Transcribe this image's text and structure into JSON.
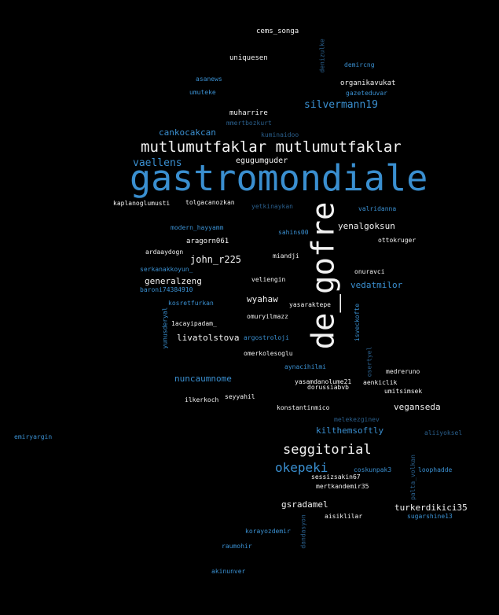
{
  "colors": {
    "background": "#000000",
    "white": "#f2f2f2",
    "blue": "#3a8fd0",
    "dim": "#2a5f8c"
  },
  "words": [
    {
      "id": "w-cems_songa",
      "text": "cems_songa"
    },
    {
      "id": "w-denizulke",
      "text": "denizulke"
    },
    {
      "id": "w-uniquesen",
      "text": "uniquesen"
    },
    {
      "id": "w-demircng",
      "text": "demircng"
    },
    {
      "id": "w-asanews",
      "text": "asanews"
    },
    {
      "id": "w-organikavukat",
      "text": "organikavukat"
    },
    {
      "id": "w-umuteke",
      "text": "umuteke"
    },
    {
      "id": "w-gazeteduvar",
      "text": "gazeteduvar"
    },
    {
      "id": "w-silvermann19",
      "text": "silvermann19"
    },
    {
      "id": "w-muharrire",
      "text": "muharrire"
    },
    {
      "id": "w-mmertbozkurt",
      "text": "mmertbozkurt"
    },
    {
      "id": "w-cankocakcan",
      "text": "cankocakcan"
    },
    {
      "id": "w-kuminaidoo",
      "text": "kuminaidoo"
    },
    {
      "id": "w-mutlumutfaklar",
      "text": "mutlumutfaklar mutlumutfaklar"
    },
    {
      "id": "w-vaellens",
      "text": "vaellens"
    },
    {
      "id": "w-egugumguder",
      "text": "egugumguder"
    },
    {
      "id": "w-gastromondiale",
      "text": "gastromondiale"
    },
    {
      "id": "w-kaplanoglumusti",
      "text": "kaplanoglumusti"
    },
    {
      "id": "w-tolgacanozkan",
      "text": "tolgacanozkan"
    },
    {
      "id": "w-yetkinaykan",
      "text": "yetkinaykan"
    },
    {
      "id": "w-de_gofre",
      "text": "de_gofre"
    },
    {
      "id": "w-valridanna",
      "text": "valridanna"
    },
    {
      "id": "w-modern_hayyamm",
      "text": "modern_hayyamm"
    },
    {
      "id": "w-yenalgoksun",
      "text": "yenalgoksun"
    },
    {
      "id": "w-sahins00",
      "text": "sahins00"
    },
    {
      "id": "w-aragorn061",
      "text": "aragorn061"
    },
    {
      "id": "w-ottokruger",
      "text": "ottokruger"
    },
    {
      "id": "w-ardaaydogn",
      "text": "ardaaydogn"
    },
    {
      "id": "w-miandji",
      "text": "miandji"
    },
    {
      "id": "w-john_r225",
      "text": "john_r225"
    },
    {
      "id": "w-serkanakkoyun_",
      "text": "serkanakkoyun_"
    },
    {
      "id": "w-onuravci",
      "text": "onuravci"
    },
    {
      "id": "w-generalzeng",
      "text": "generalzeng"
    },
    {
      "id": "w-veliengin",
      "text": "veliengin"
    },
    {
      "id": "w-vedatmilor",
      "text": "vedatmilor"
    },
    {
      "id": "w-baroni74384910",
      "text": "baroni74384910"
    },
    {
      "id": "w-wyahaw",
      "text": "wyahaw"
    },
    {
      "id": "w-kosretfurkan",
      "text": "kosretfurkan"
    },
    {
      "id": "w-yasaraktepe",
      "text": "yasaraktepe"
    },
    {
      "id": "w-yunusderyal",
      "text": "yunusderyal"
    },
    {
      "id": "w-omuryilmazz",
      "text": "omuryilmazz"
    },
    {
      "id": "w-isveckofte",
      "text": "isveckofte"
    },
    {
      "id": "w-1acayipadam_",
      "text": "1acayipadam_"
    },
    {
      "id": "w-livatolstova",
      "text": "livatolstova"
    },
    {
      "id": "w-argostroloji",
      "text": "argostroloji"
    },
    {
      "id": "w-omerkolesoglu",
      "text": "omerkolesoglu"
    },
    {
      "id": "w-osertyel",
      "text": "osertyel"
    },
    {
      "id": "w-aynacihilmi",
      "text": "aynacihilmi"
    },
    {
      "id": "w-medreruno",
      "text": "medreruno"
    },
    {
      "id": "w-nuncaumnome",
      "text": "nuncaumnome"
    },
    {
      "id": "w-yasamdanolume21",
      "text": "yasamdanolume21"
    },
    {
      "id": "w-aenkiclik",
      "text": "aenkiclik"
    },
    {
      "id": "w-dorussiabvb",
      "text": "dorussiabvb"
    },
    {
      "id": "w-umitsimsek",
      "text": "umitsimsek"
    },
    {
      "id": "w-seyyahil",
      "text": "seyyahil"
    },
    {
      "id": "w-ilkerkoch",
      "text": "ilkerkoch"
    },
    {
      "id": "w-konstantinmico",
      "text": "konstantinmico"
    },
    {
      "id": "w-veganseda",
      "text": "veganseda"
    },
    {
      "id": "w-melekezginev",
      "text": "melekezginev"
    },
    {
      "id": "w-kilthemsoftly",
      "text": "kilthemsoftly"
    },
    {
      "id": "w-aliiyoksel",
      "text": "aliiyoksel"
    },
    {
      "id": "w-emiryargin",
      "text": "emiryargin"
    },
    {
      "id": "w-seggitorial",
      "text": "seggitorial"
    },
    {
      "id": "w-okepeki",
      "text": "okepeki"
    },
    {
      "id": "w-coskunpak3",
      "text": "coskunpak3"
    },
    {
      "id": "w-loophadde",
      "text": "loophadde"
    },
    {
      "id": "w-palta_volkan",
      "text": "palta_volkan"
    },
    {
      "id": "w-sessizsakin67",
      "text": "sessizsakin67"
    },
    {
      "id": "w-mertkandemir35",
      "text": "mertkandemir35"
    },
    {
      "id": "w-gsradamel",
      "text": "gsradamel"
    },
    {
      "id": "w-turkerdikici35",
      "text": "turkerdikici35"
    },
    {
      "id": "w-aisiklilar",
      "text": "aisiklilar"
    },
    {
      "id": "w-sugarshine13",
      "text": "sugarshine13"
    },
    {
      "id": "w-dandasyon",
      "text": "dandasyon"
    },
    {
      "id": "w-korayozdemir",
      "text": "korayozdemir"
    },
    {
      "id": "w-raumohir",
      "text": "raumohir"
    },
    {
      "id": "w-akinunver",
      "text": "akinunver"
    }
  ]
}
